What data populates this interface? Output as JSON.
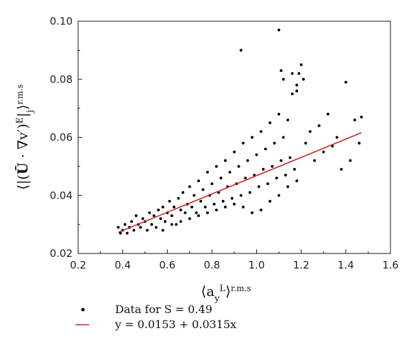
{
  "chart_data": {
    "type": "scatter",
    "xlabel": "⟨a_y^L⟩ r.m.s",
    "ylabel": "⟨|(Ū · ∇v′)^E|_j⟩ r.m.s",
    "xlim": [
      0.2,
      1.6
    ],
    "ylim": [
      0.02,
      0.1
    ],
    "xticks": [
      "0.2",
      "0.4",
      "0.6",
      "0.8",
      "1.0",
      "1.2",
      "1.4",
      "1.6"
    ],
    "yticks": [
      "0.02",
      "0.04",
      "0.06",
      "0.08",
      "0.10"
    ],
    "grid": false,
    "legend_position": "bottom-left, below the plot",
    "series": [
      {
        "name": "Data for S = 0.49",
        "kind": "points",
        "color": "#000000",
        "points": [
          [
            0.38,
            0.029
          ],
          [
            0.39,
            0.027
          ],
          [
            0.4,
            0.028
          ],
          [
            0.41,
            0.03
          ],
          [
            0.42,
            0.027
          ],
          [
            0.43,
            0.029
          ],
          [
            0.44,
            0.031
          ],
          [
            0.45,
            0.028
          ],
          [
            0.46,
            0.033
          ],
          [
            0.47,
            0.03
          ],
          [
            0.48,
            0.029
          ],
          [
            0.49,
            0.032
          ],
          [
            0.5,
            0.031
          ],
          [
            0.51,
            0.028
          ],
          [
            0.52,
            0.034
          ],
          [
            0.53,
            0.03
          ],
          [
            0.54,
            0.033
          ],
          [
            0.55,
            0.029
          ],
          [
            0.56,
            0.035
          ],
          [
            0.57,
            0.032
          ],
          [
            0.58,
            0.036
          ],
          [
            0.59,
            0.031
          ],
          [
            0.6,
            0.034
          ],
          [
            0.61,
            0.038
          ],
          [
            0.62,
            0.033
          ],
          [
            0.63,
            0.036
          ],
          [
            0.64,
            0.03
          ],
          [
            0.65,
            0.039
          ],
          [
            0.66,
            0.035
          ],
          [
            0.67,
            0.041
          ],
          [
            0.68,
            0.034
          ],
          [
            0.69,
            0.037
          ],
          [
            0.7,
            0.043
          ],
          [
            0.71,
            0.036
          ],
          [
            0.72,
            0.04
          ],
          [
            0.73,
            0.034
          ],
          [
            0.74,
            0.045
          ],
          [
            0.75,
            0.038
          ],
          [
            0.76,
            0.042
          ],
          [
            0.77,
            0.036
          ],
          [
            0.78,
            0.048
          ],
          [
            0.79,
            0.04
          ],
          [
            0.8,
            0.044
          ],
          [
            0.81,
            0.037
          ],
          [
            0.82,
            0.05
          ],
          [
            0.83,
            0.041
          ],
          [
            0.84,
            0.046
          ],
          [
            0.85,
            0.038
          ],
          [
            0.86,
            0.052
          ],
          [
            0.87,
            0.043
          ],
          [
            0.88,
            0.048
          ],
          [
            0.89,
            0.039
          ],
          [
            0.9,
            0.055
          ],
          [
            0.91,
            0.044
          ],
          [
            0.92,
            0.05
          ],
          [
            0.93,
            0.04
          ],
          [
            0.94,
            0.058
          ],
          [
            0.95,
            0.046
          ],
          [
            0.96,
            0.052
          ],
          [
            0.97,
            0.041
          ],
          [
            0.98,
            0.06
          ],
          [
            0.99,
            0.047
          ],
          [
            1.0,
            0.054
          ],
          [
            1.01,
            0.043
          ],
          [
            1.02,
            0.062
          ],
          [
            1.03,
            0.049
          ],
          [
            1.04,
            0.056
          ],
          [
            1.05,
            0.044
          ],
          [
            1.06,
            0.065
          ],
          [
            1.07,
            0.05
          ],
          [
            1.08,
            0.058
          ],
          [
            1.09,
            0.046
          ],
          [
            1.1,
            0.068
          ],
          [
            1.11,
            0.052
          ],
          [
            1.12,
            0.06
          ],
          [
            1.13,
            0.047
          ],
          [
            1.14,
            0.066
          ],
          [
            1.15,
            0.053
          ],
          [
            1.16,
            0.075
          ],
          [
            1.17,
            0.049
          ],
          [
            1.18,
            0.078
          ],
          [
            1.2,
            0.085
          ],
          [
            1.22,
            0.058
          ],
          [
            1.24,
            0.062
          ],
          [
            1.26,
            0.052
          ],
          [
            1.28,
            0.064
          ],
          [
            1.3,
            0.055
          ],
          [
            1.32,
            0.068
          ],
          [
            1.34,
            0.057
          ],
          [
            1.36,
            0.06
          ],
          [
            1.38,
            0.049
          ],
          [
            1.4,
            0.079
          ],
          [
            1.42,
            0.052
          ],
          [
            1.44,
            0.066
          ],
          [
            1.46,
            0.058
          ],
          [
            1.47,
            0.067
          ],
          [
            0.93,
            0.09
          ],
          [
            1.1,
            0.097
          ],
          [
            1.11,
            0.083
          ],
          [
            1.16,
            0.082
          ],
          [
            1.19,
            0.082
          ],
          [
            1.21,
            0.08
          ],
          [
            1.12,
            0.08
          ],
          [
            1.18,
            0.076
          ],
          [
            0.58,
            0.028
          ],
          [
            0.62,
            0.03
          ],
          [
            0.66,
            0.031
          ],
          [
            0.7,
            0.032
          ],
          [
            0.74,
            0.033
          ],
          [
            0.78,
            0.034
          ],
          [
            0.82,
            0.035
          ],
          [
            0.86,
            0.036
          ],
          [
            0.9,
            0.037
          ],
          [
            0.94,
            0.036
          ],
          [
            0.98,
            0.034
          ],
          [
            1.02,
            0.035
          ],
          [
            1.06,
            0.038
          ],
          [
            1.1,
            0.04
          ],
          [
            1.14,
            0.043
          ],
          [
            1.18,
            0.045
          ]
        ]
      },
      {
        "name": "y = 0.0153 + 0.0315x",
        "kind": "fit",
        "color": "#d42020",
        "intercept": 0.0153,
        "slope": 0.0315,
        "x_range": [
          0.38,
          1.47
        ]
      }
    ],
    "legend": [
      {
        "marker": "dot",
        "text": "Data for S = 0.49"
      },
      {
        "marker": "line",
        "text": "y = 0.0153 + 0.0315x"
      }
    ]
  }
}
